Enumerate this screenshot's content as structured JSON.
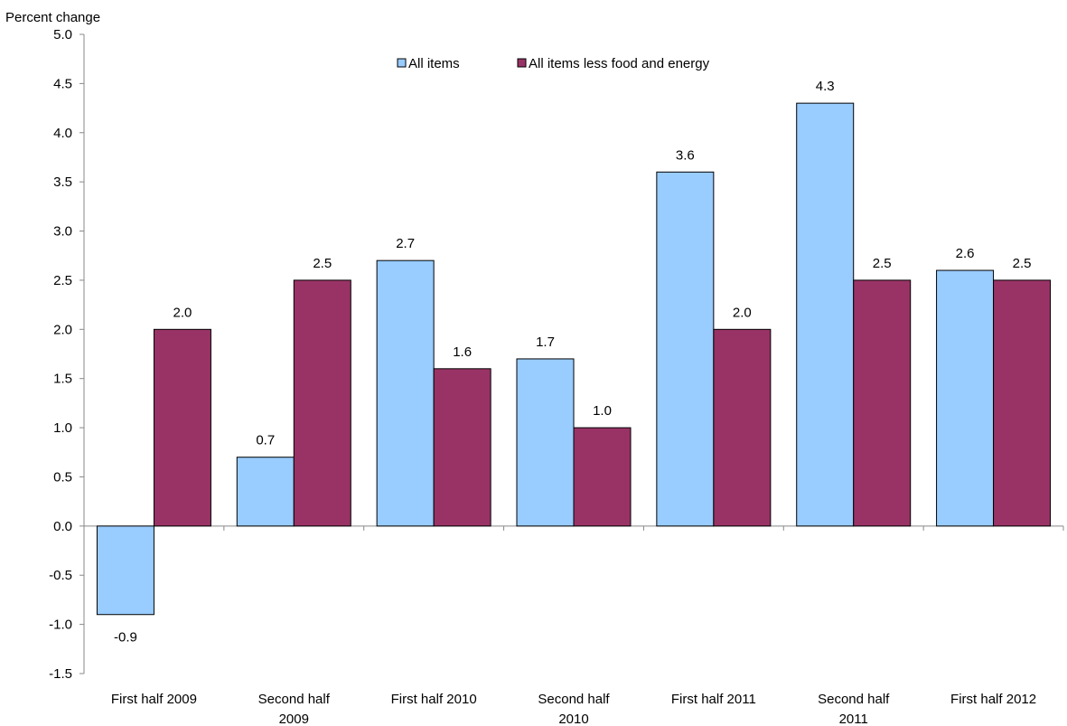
{
  "chart_data": {
    "type": "bar",
    "ylabel": "Percent change",
    "ylim": [
      -1.5,
      5.0
    ],
    "yticks": [
      5.0,
      4.5,
      4.0,
      3.5,
      3.0,
      2.5,
      2.0,
      1.5,
      1.0,
      0.5,
      0.0,
      -0.5,
      -1.0,
      -1.5
    ],
    "ytick_labels": [
      "5.0",
      "4.5",
      "4.0",
      "3.5",
      "3.0",
      "2.5",
      "2.0",
      "1.5",
      "1.0",
      "0.5",
      "0.0",
      "-0.5",
      "-1.0",
      "-1.5"
    ],
    "categories": [
      [
        "First half 2009"
      ],
      [
        "Second half",
        "2009"
      ],
      [
        "First half 2010"
      ],
      [
        "Second half",
        "2010"
      ],
      [
        "First half 2011"
      ],
      [
        "Second half",
        "2011"
      ],
      [
        "First half 2012"
      ]
    ],
    "series": [
      {
        "name": "All items",
        "color": "#99ccff",
        "values": [
          -0.9,
          0.7,
          2.7,
          1.7,
          3.6,
          4.3,
          2.6
        ],
        "labels": [
          "-0.9",
          "0.7",
          "2.7",
          "1.7",
          "3.6",
          "4.3",
          "2.6"
        ]
      },
      {
        "name": "All items less food and energy",
        "color": "#993366",
        "values": [
          2.0,
          2.5,
          1.6,
          1.0,
          2.0,
          2.5,
          2.5
        ],
        "labels": [
          "2.0",
          "2.5",
          "1.6",
          "1.0",
          "2.0",
          "2.5",
          "2.5"
        ]
      }
    ],
    "legend_position": "top-center",
    "grid": false
  }
}
